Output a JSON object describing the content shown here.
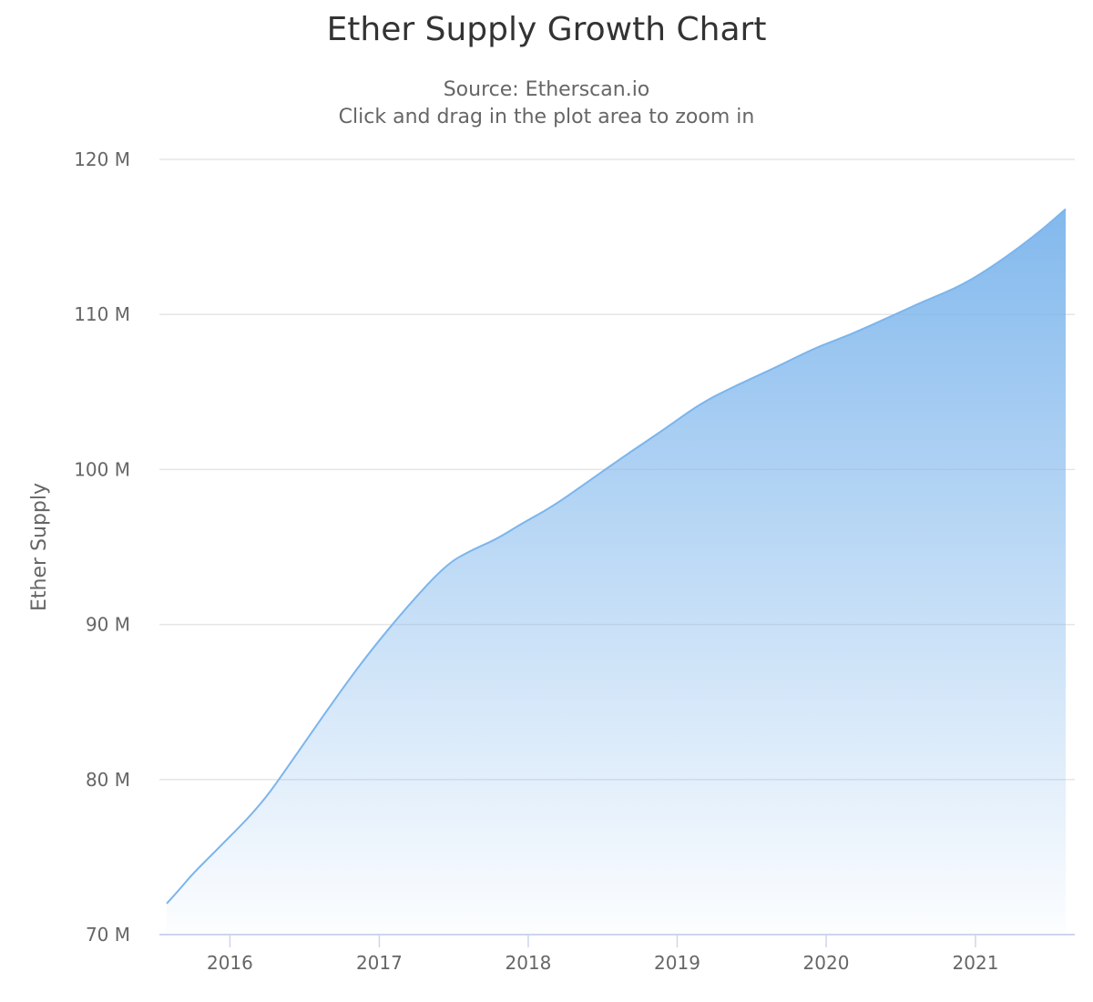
{
  "chart_data": {
    "type": "area",
    "title": "Ether Supply Growth Chart",
    "subtitle_lines": [
      "Source: Etherscan.io",
      "Click and drag in the plot area to zoom in"
    ],
    "ylabel": "Ether Supply",
    "xlabel": "",
    "ylim": [
      70000000,
      120000000
    ],
    "xlim": [
      "2015-07-30",
      "2021-08-10"
    ],
    "y_ticks": [
      {
        "value": 70000000,
        "label": "70 M"
      },
      {
        "value": 80000000,
        "label": "80 M"
      },
      {
        "value": 90000000,
        "label": "90 M"
      },
      {
        "value": 100000000,
        "label": "100 M"
      },
      {
        "value": 110000000,
        "label": "110 M"
      },
      {
        "value": 120000000,
        "label": "120 M"
      }
    ],
    "x_ticks": [
      {
        "value": "2016-01-01",
        "label": "2016"
      },
      {
        "value": "2017-01-01",
        "label": "2017"
      },
      {
        "value": "2018-01-01",
        "label": "2018"
      },
      {
        "value": "2019-01-01",
        "label": "2019"
      },
      {
        "value": "2020-01-01",
        "label": "2020"
      },
      {
        "value": "2021-01-01",
        "label": "2021"
      }
    ],
    "grid": true,
    "legend": "none",
    "line_color": "#7cb5ec",
    "series": [
      {
        "x": [
          "2015-07-30",
          "2015-08-30",
          "2015-10-01",
          "2015-12-01",
          "2016-03-15",
          "2016-06-01",
          "2016-09-01",
          "2016-12-01",
          "2017-03-15",
          "2017-06-15",
          "2017-08-15",
          "2017-10-15",
          "2017-12-15",
          "2018-03-01",
          "2018-06-01",
          "2018-09-01",
          "2018-12-01",
          "2019-03-01",
          "2019-06-01",
          "2019-09-01",
          "2019-12-01",
          "2020-03-01",
          "2020-06-01",
          "2020-09-01",
          "2020-12-01",
          "2021-03-01",
          "2021-06-01",
          "2021-08-10"
        ],
        "values": [
          72000000,
          72900000,
          73900000,
          75500000,
          78300000,
          81200000,
          84700000,
          88000000,
          91300000,
          93900000,
          94800000,
          95500000,
          96500000,
          97600000,
          99300000,
          101000000,
          102600000,
          104300000,
          105500000,
          106600000,
          107800000,
          108700000,
          109800000,
          110900000,
          111900000,
          113400000,
          115200000,
          116800000
        ]
      }
    ]
  }
}
